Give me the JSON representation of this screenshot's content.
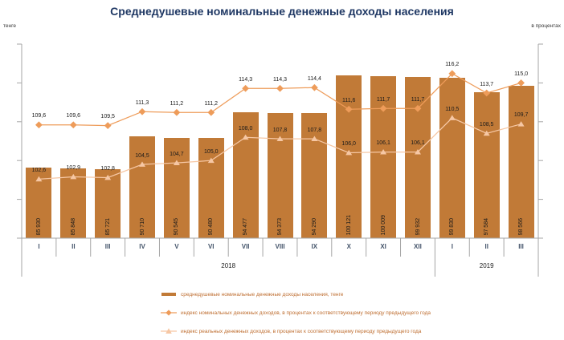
{
  "colors": {
    "bar": "#C17A37",
    "line_nominal": "#EE9C5A",
    "line_real": "#F6C7A4",
    "axis": "#A6A6A6",
    "title": "#1F3864",
    "month_label": "#44546A",
    "year_label": "#1A1A1A",
    "data_label": "#1A1A1A",
    "legend_text": "#BE6D2F",
    "background": "#FFFFFF"
  },
  "chart_data": {
    "type": "bar",
    "title": "Среднедушевые номинальные денежные доходы населения",
    "categories": [
      "I",
      "II",
      "III",
      "IV",
      "V",
      "VI",
      "VII",
      "VIII",
      "IX",
      "X",
      "XI",
      "XII",
      "I",
      "II",
      "III"
    ],
    "year_groups": [
      {
        "label": "2018",
        "start": 0,
        "span": 12
      },
      {
        "label": "2019",
        "start": 12,
        "span": 3
      }
    ],
    "series": [
      {
        "name": "среднедушевые номинальные денежные доходы населения, тенге",
        "type": "bar",
        "axis": "left",
        "values": [
          85930,
          85848,
          85721,
          90710,
          90545,
          90480,
          94477,
          94373,
          94290,
          100121,
          100009,
          99932,
          99830,
          97584,
          98566
        ],
        "display_labels": [
          "85 930",
          "85 848",
          "85 721",
          "90 710",
          "90 545",
          "90 480",
          "94 477",
          "94 373",
          "94 290",
          "100 121",
          "100 009",
          "99 932",
          "99 830",
          "97 584",
          "98 566"
        ]
      },
      {
        "name": "индекс номинальных денежных доходов, в процентах к соответствующему периоду предыдущего года",
        "type": "line",
        "marker": "diamond",
        "axis": "right",
        "values": [
          109.6,
          109.6,
          109.5,
          111.3,
          111.2,
          111.2,
          114.3,
          114.3,
          114.4,
          111.6,
          111.7,
          111.7,
          116.2,
          113.7,
          115.0
        ],
        "display_labels": [
          "109,6",
          "109,6",
          "109,5",
          "111,3",
          "111,2",
          "111,2",
          "114,3",
          "114,3",
          "114,4",
          "111,6",
          "111,7",
          "111,7",
          "116,2",
          "113,7",
          "115,0"
        ]
      },
      {
        "name": "индекс реальных денежных доходов, в процентах к соответствующему периоду предыдущего года",
        "type": "line",
        "marker": "triangle",
        "axis": "right",
        "values": [
          102.6,
          102.9,
          102.8,
          104.5,
          104.7,
          105.0,
          108.0,
          107.8,
          107.8,
          106.0,
          106.1,
          106.1,
          110.5,
          108.5,
          109.7
        ],
        "display_labels": [
          "102,6",
          "102,9",
          "102,8",
          "104,5",
          "104,7",
          "105,0",
          "108,0",
          "107,8",
          "107,8",
          "106,0",
          "106,1",
          "106,1",
          "110,5",
          "108,5",
          "109,7"
        ]
      }
    ],
    "left_axis": {
      "unit": "тенге",
      "min": 75000,
      "max": 105000,
      "tick_count": 6,
      "tick_labels_shown": false
    },
    "right_axis": {
      "unit": "в процентах",
      "min": 95,
      "max": 120,
      "tick_count": 6,
      "tick_labels_shown": false
    },
    "grid": false,
    "legend_position": "bottom"
  }
}
